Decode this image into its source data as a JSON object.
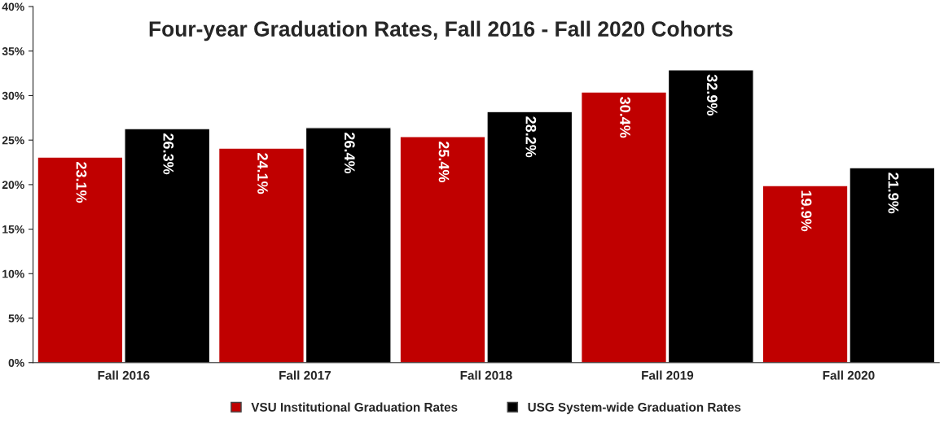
{
  "chart_data": {
    "type": "bar",
    "title": "Four-year Graduation Rates, Fall 2016 - Fall 2020 Cohorts",
    "categories": [
      "Fall 2016",
      "Fall 2017",
      "Fall 2018",
      "Fall 2019",
      "Fall 2020"
    ],
    "series": [
      {
        "name": "VSU Institutional Graduation Rates",
        "color": "#c00000",
        "values": [
          23.1,
          24.1,
          25.4,
          30.4,
          19.9
        ],
        "value_labels": [
          "23.1%",
          "24.1%",
          "25.4%",
          "30.4%",
          "19.9%"
        ]
      },
      {
        "name": "USG System-wide Graduation Rates",
        "color": "#000000",
        "values": [
          26.3,
          26.4,
          28.2,
          32.9,
          21.9
        ],
        "value_labels": [
          "26.3%",
          "26.4%",
          "28.2%",
          "32.9%",
          "21.9%"
        ]
      }
    ],
    "ylim": [
      0,
      40
    ],
    "yticks": [
      {
        "value": 0,
        "label": "0%"
      },
      {
        "value": 5,
        "label": "5%"
      },
      {
        "value": 10,
        "label": "10%"
      },
      {
        "value": 15,
        "label": "15%"
      },
      {
        "value": 20,
        "label": "20%"
      },
      {
        "value": 25,
        "label": "25%"
      },
      {
        "value": 30,
        "label": "30%"
      },
      {
        "value": 35,
        "label": "35%"
      },
      {
        "value": 40,
        "label": "40%"
      }
    ],
    "grid": false,
    "legend": "bottom"
  }
}
